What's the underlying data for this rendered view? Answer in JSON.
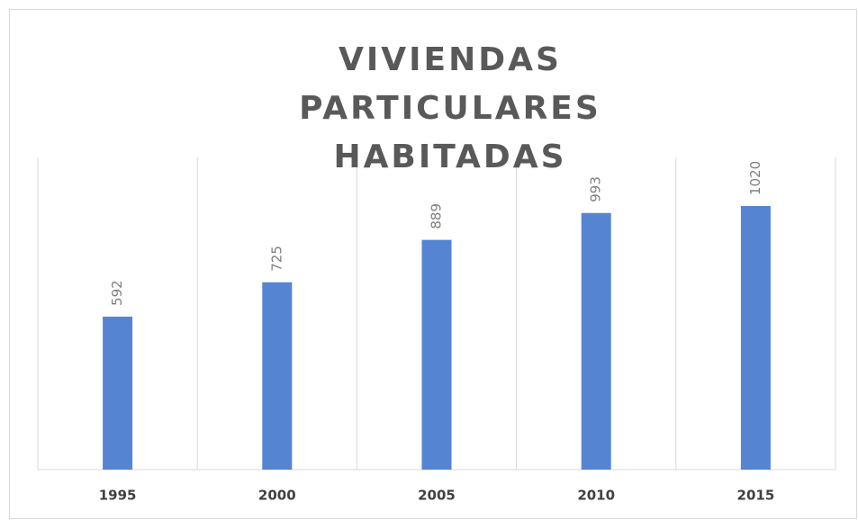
{
  "chart_data": {
    "type": "bar",
    "title": "VIVIENDAS PARTICULARES HABITADAS",
    "categories": [
      "1995",
      "2000",
      "2005",
      "2010",
      "2015"
    ],
    "values": [
      592,
      725,
      889,
      993,
      1020
    ],
    "color": "#5585d2",
    "grid": true
  }
}
